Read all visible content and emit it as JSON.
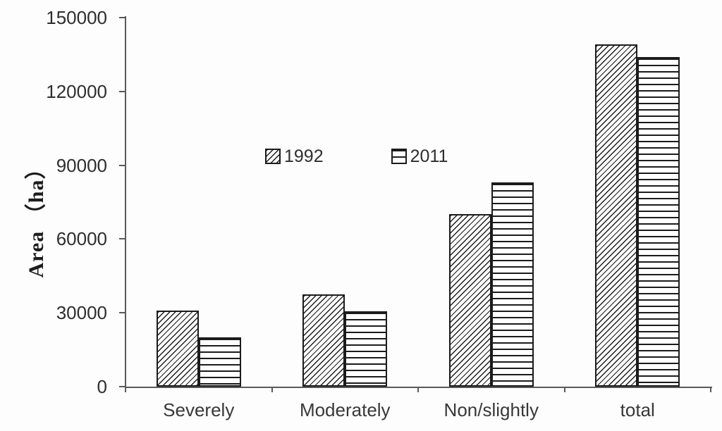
{
  "chart_data": {
    "type": "bar",
    "title": "",
    "xlabel": "",
    "ylabel": "Area （ha）",
    "categories": [
      "Severely",
      "Moderately",
      "Non/slightly",
      "total"
    ],
    "series": [
      {
        "name": "1992",
        "pattern": "diagonal-hatch",
        "values": [
          31000,
          37500,
          70000,
          139000
        ]
      },
      {
        "name": "2011",
        "pattern": "horizontal-hatch",
        "values": [
          20000,
          30500,
          83000,
          134000
        ]
      }
    ],
    "ylim": [
      0,
      150000
    ],
    "ytick_step": 30000,
    "yticks": [
      "0",
      "30000",
      "60000",
      "90000",
      "120000",
      "150000"
    ],
    "legend_position": "inside-top-center",
    "grid": false,
    "colors": {
      "bar_line": "#1b1b1b",
      "axis": "#5a5a5a",
      "text": "#2e2e2e",
      "background": "#fdfdfd"
    }
  }
}
